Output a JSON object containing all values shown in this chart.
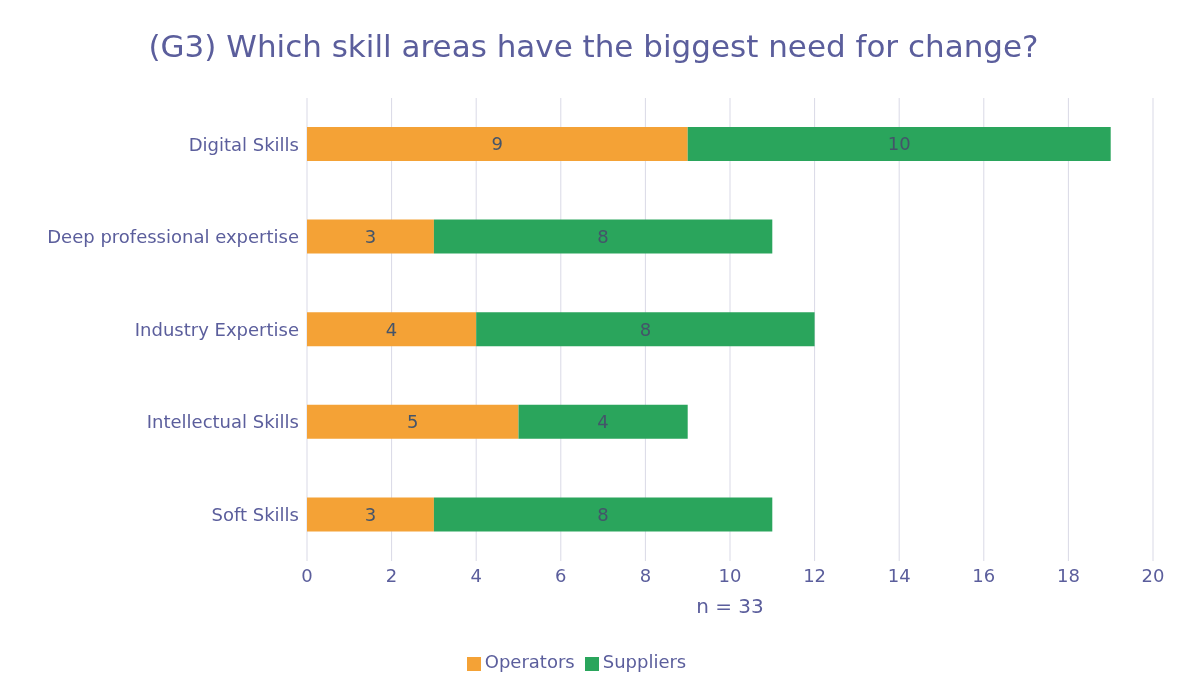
{
  "chart_data": {
    "type": "bar",
    "orientation": "horizontal",
    "stacked": true,
    "title": "(G3) Which skill areas have the biggest need for change?",
    "xlabel": "n = 33",
    "categories": [
      "Digital Skills",
      "Deep professional expertise",
      "Industry Expertise",
      "Intellectual Skills",
      "Soft Skills"
    ],
    "series": [
      {
        "name": "Operators",
        "color": "#f4a236",
        "values": [
          9,
          3,
          4,
          5,
          3
        ]
      },
      {
        "name": "Suppliers",
        "color": "#2aa55c",
        "values": [
          10,
          8,
          8,
          4,
          8
        ]
      }
    ],
    "xlim": [
      0,
      20
    ],
    "xticks": [
      0,
      2,
      4,
      6,
      8,
      10,
      12,
      14,
      16,
      18,
      20
    ],
    "grid": "x",
    "legend": "bottom",
    "data_labels": true
  }
}
